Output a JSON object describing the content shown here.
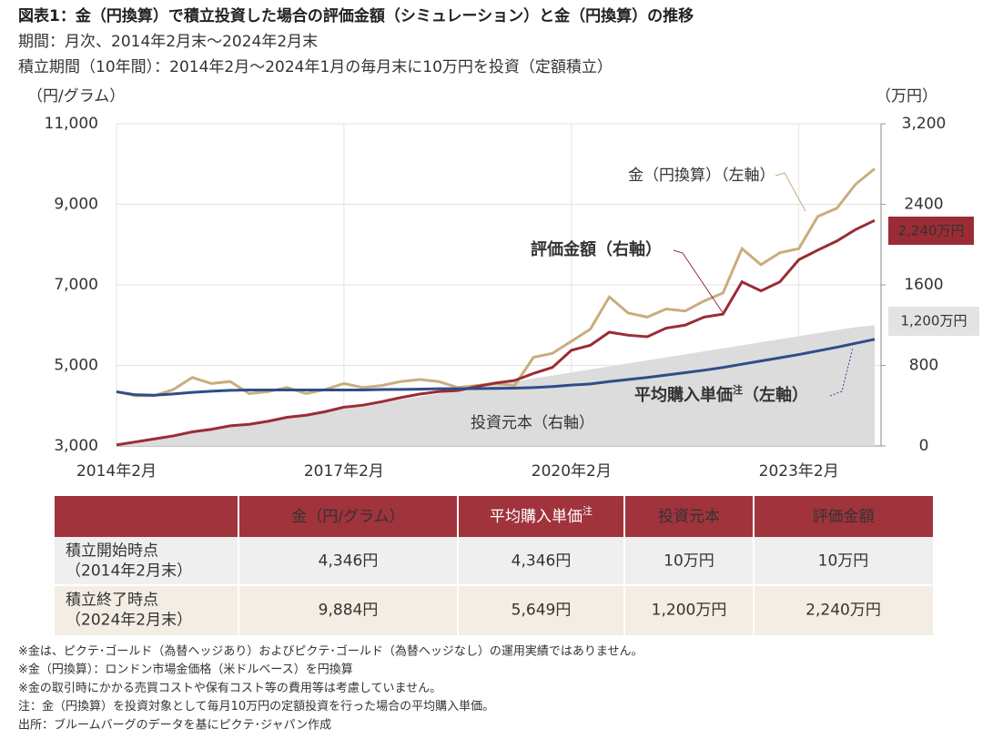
{
  "header": {
    "title": "図表1：金（円換算）で積立投資した場合の評価金額（シミュレーション）と金（円換算）の推移",
    "subtitle_1": "期間：月次、2014年2月末～2024年2月末",
    "subtitle_2": "積立期間（10年間）：2014年2月～2024年1月の毎月末に10万円を投資（定額積立）"
  },
  "chart_data": {
    "type": "line",
    "y_label": "（円/グラム）",
    "y2_label": "（万円）",
    "categories": [
      "2014年2月",
      null,
      null,
      null,
      null,
      null,
      null,
      null,
      null,
      null,
      null,
      null,
      "2017年2月",
      null,
      null,
      null,
      null,
      null,
      null,
      null,
      null,
      null,
      null,
      null,
      "2020年2月",
      null,
      null,
      null,
      null,
      null,
      null,
      null,
      null,
      null,
      null,
      null,
      "2023年2月",
      null,
      null,
      null,
      null
    ],
    "ylim": [
      3000,
      11000
    ],
    "yticks": [
      {
        "value": 3000,
        "label": "3,000"
      },
      {
        "value": 5000,
        "label": "5,000"
      },
      {
        "value": 7000,
        "label": "7,000"
      },
      {
        "value": 9000,
        "label": "9,000"
      },
      {
        "value": 11000,
        "label": "11,000"
      }
    ],
    "y2lim": [
      0,
      3200
    ],
    "y2ticks": [
      0,
      800,
      1600,
      2400,
      {
        "value": 3200,
        "label": "3,200"
      }
    ],
    "grid": true,
    "series": [
      {
        "name": "投資元本（右軸）",
        "type": "area",
        "axis": "y2",
        "color": "#dcdcdc",
        "values": [
          10,
          40,
          70,
          100,
          130,
          160,
          190,
          220,
          250,
          280,
          310,
          340,
          370,
          400,
          430,
          460,
          490,
          520,
          550,
          580,
          610,
          640,
          670,
          700,
          730,
          760,
          790,
          820,
          850,
          880,
          910,
          940,
          970,
          1000,
          1030,
          1060,
          1090,
          1120,
          1150,
          1180,
          1200
        ],
        "end_label": "1,200万円"
      },
      {
        "name": "金（円換算）（左軸）",
        "color": "#c8ad7f",
        "values": [
          4346,
          4250,
          4250,
          4400,
          4700,
          4550,
          4600,
          4300,
          4350,
          4450,
          4300,
          4400,
          4550,
          4450,
          4500,
          4600,
          4650,
          4600,
          4450,
          4500,
          4550,
          4500,
          5200,
          5300,
          5600,
          5900,
          6700,
          6300,
          6200,
          6400,
          6350,
          6600,
          6800,
          7900,
          7500,
          7800,
          7900,
          8700,
          8900,
          9500,
          9884
        ]
      },
      {
        "name": "評価金額（右軸）",
        "axis": "y2",
        "color": "#9b2c35",
        "values": [
          10,
          40,
          70,
          100,
          140,
          165,
          200,
          215,
          245,
          285,
          305,
          340,
          385,
          405,
          440,
          480,
          515,
          540,
          550,
          590,
          625,
          650,
          720,
          780,
          950,
          1000,
          1130,
          1100,
          1085,
          1170,
          1200,
          1280,
          1310,
          1630,
          1540,
          1630,
          1850,
          1945,
          2035,
          2150,
          2240
        ],
        "end_label": "2,240万円"
      },
      {
        "name": "平均購入単価",
        "name_note": "注",
        "name_suffix": "（左軸）",
        "color": "#2e4d8a",
        "values": [
          4346,
          4270,
          4260,
          4290,
          4330,
          4360,
          4380,
          4390,
          4390,
          4390,
          4390,
          4390,
          4390,
          4390,
          4400,
          4405,
          4410,
          4420,
          4420,
          4425,
          4430,
          4435,
          4450,
          4475,
          4510,
          4540,
          4600,
          4650,
          4700,
          4760,
          4820,
          4880,
          4950,
          5030,
          5110,
          5190,
          5270,
          5360,
          5450,
          5550,
          5649
        ]
      }
    ]
  },
  "table": {
    "header": [
      "金（円/グラム）",
      {
        "text": "平均購入単価",
        "note": "注"
      },
      "投資元本",
      "評価金額"
    ],
    "rows": [
      {
        "label": [
          "積立開始時点",
          "（2014年2月末）"
        ],
        "cells": [
          "4,346円",
          "4,346円",
          "10万円",
          "10万円"
        ]
      },
      {
        "label": [
          "積立終了時点",
          "（2024年2月末）"
        ],
        "cells": [
          "9,884円",
          "5,649円",
          "1,200万円",
          "2,240万円"
        ]
      }
    ]
  },
  "notes": [
    "※金は、ピクテ･ゴールド（為替ヘッジあり）およびピクテ･ゴールド（為替ヘッジなし）の運用実績ではありません。",
    "※金（円換算）：ロンドン市場金価格（米ドルベース）を円換算",
    "※金の取引時にかかる売買コストや保有コスト等の費用等は考慮していません。",
    "注：金（円換算）を投資対象として毎月10万円の定額投資を行った場合の平均購入単価。",
    "出所：ブルームバーグのデータを基にピクテ･ジャパン作成"
  ]
}
